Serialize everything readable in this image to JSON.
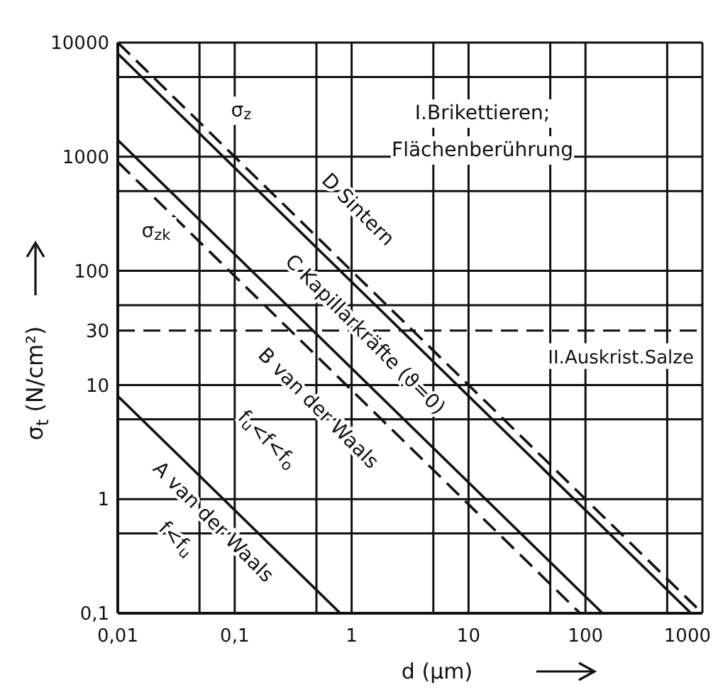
{
  "chart_data": {
    "type": "line",
    "xlabel": "d (µm)",
    "ylabel": "σ$_{t}$ (N/cm²)",
    "log": "xy",
    "grid": true,
    "marker": "none",
    "xlim": [
      0.01,
      1000
    ],
    "xticks": [
      {
        "value": 0.01,
        "label": "0,01"
      },
      {
        "value": 0.05,
        "label": null
      },
      {
        "value": 0.1,
        "label": "0,1"
      },
      {
        "value": 0.5,
        "label": null
      },
      1,
      {
        "value": 5,
        "label": null
      },
      10,
      {
        "value": 50,
        "label": null
      },
      100,
      {
        "value": 500,
        "label": null
      },
      1000
    ],
    "ylim": [
      0.1,
      10000
    ],
    "yticks": [
      {
        "value": 0.1,
        "label": "0,1"
      },
      {
        "value": 0.5,
        "label": null
      },
      1,
      {
        "value": 5,
        "label": null
      },
      10,
      30,
      {
        "value": 50,
        "label": null
      },
      100,
      {
        "value": 500,
        "label": null
      },
      1000,
      {
        "value": 5000,
        "label": null
      },
      10000
    ],
    "series": [
      {
        "color": "#111111",
        "line_style": "solid",
        "x": [
          0.01,
          0.8
        ],
        "values": [
          8,
          0.1
        ]
      },
      {
        "color": "#111111",
        "line_style": "dashed",
        "x": [
          0.01,
          90
        ],
        "values": [
          900,
          0.1
        ]
      },
      {
        "color": "#111111",
        "line_style": "solid",
        "x": [
          0.01,
          140
        ],
        "values": [
          1400,
          0.1
        ]
      },
      {
        "color": "#111111",
        "line_style": "solid",
        "x": [
          0.01,
          800
        ],
        "values": [
          8000,
          0.1
        ]
      },
      {
        "color": "#111111",
        "line_style": "dashed",
        "x": [
          0.01,
          1000
        ],
        "values": [
          10000,
          0.1
        ]
      }
    ],
    "ref_lines": [
      {
        "axis": "y",
        "value": 30,
        "label": "II.Auskrist.Salze",
        "line_style": "dashed",
        "color": "#111111"
      }
    ],
    "annotations": [
      "σ$_{z}$",
      "σ$_{zk}$",
      "I.Brikettieren;",
      "Flächenberührung",
      "D Sintern",
      "C Kapillarkräfte (ϑ=0)",
      "B van der Waals",
      "f$_{u}$<f<f$_{o}$",
      "A van der Waals",
      "f<f$_{u}$"
    ]
  }
}
